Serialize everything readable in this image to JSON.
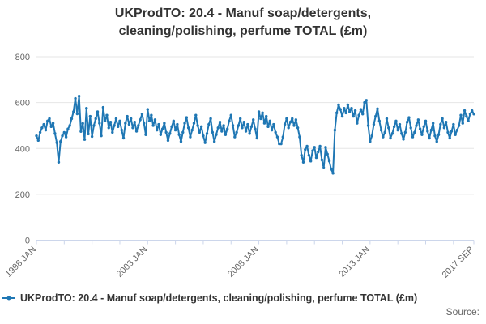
{
  "title": {
    "line1": "UKProdTO: 20.4 - Manuf soap/detergents,",
    "line2": "cleaning/polishing, perfume TOTAL (£m)"
  },
  "legend": {
    "label": "UKProdTO: 20.4 - Manuf soap/detergents, cleaning/polishing, perfume TOTAL (£m)"
  },
  "source_label": "Source:",
  "colors": {
    "series": "#1f77b4",
    "grid": "#e6e6e6",
    "axis_line": "#ccd6eb",
    "title_text": "#333333",
    "axis_text": "#666666",
    "source_text": "#666666",
    "background": "#ffffff"
  },
  "chart_data": {
    "type": "line",
    "title": "UKProdTO: 20.4 - Manuf soap/detergents, cleaning/polishing, perfume TOTAL (£m)",
    "xlabel": "",
    "ylabel": "",
    "ylim": [
      0,
      800
    ],
    "y_ticks": [
      0,
      200,
      400,
      600,
      800
    ],
    "grid": true,
    "legend_position": "bottom-left",
    "x_start": "1998 JAN",
    "x_end": "2017 SEP",
    "frequency": "monthly",
    "n_points": 237,
    "x_tick_labels": [
      {
        "month_index": 0,
        "label": "1998 JAN"
      },
      {
        "month_index": 60,
        "label": "2003 JAN"
      },
      {
        "month_index": 120,
        "label": "2008 JAN"
      },
      {
        "month_index": 180,
        "label": "2013 JAN"
      },
      {
        "month_index": 236,
        "label": "2017 SEP"
      }
    ],
    "minor_tick_interval_months": 15,
    "series": [
      {
        "name": "UKProdTO: 20.4 - Manuf soap/detergents, cleaning/polishing, perfume TOTAL (£m)",
        "color": "#1f77b4",
        "start": "1998 JAN",
        "values": [
          455,
          435,
          470,
          490,
          505,
          480,
          520,
          530,
          495,
          510,
          465,
          425,
          340,
          430,
          455,
          470,
          450,
          485,
          500,
          530,
          560,
          618,
          551,
          628,
          474,
          509,
          439,
          575,
          463,
          540,
          452,
          500,
          530,
          560,
          510,
          455,
          579,
          520,
          545,
          490,
          515,
          470,
          500,
          530,
          495,
          520,
          480,
          445,
          510,
          540,
          505,
          530,
          490,
          515,
          475,
          500,
          525,
          550,
          510,
          460,
          570,
          520,
          545,
          500,
          525,
          480,
          505,
          460,
          485,
          510,
          470,
          435,
          465,
          495,
          520,
          480,
          505,
          460,
          430,
          470,
          510,
          535,
          490,
          450,
          480,
          510,
          545,
          500,
          470,
          495,
          455,
          425,
          465,
          505,
          530,
          470,
          430,
          460,
          490,
          515,
          475,
          500,
          460,
          485,
          520,
          545,
          500,
          450,
          470,
          500,
          530,
          490,
          515,
          475,
          505,
          465,
          495,
          525,
          485,
          445,
          560,
          530,
          555,
          510,
          540,
          495,
          520,
          480,
          505,
          470,
          450,
          420,
          420,
          450,
          505,
          530,
          490,
          515,
          530,
          500,
          525,
          490,
          450,
          370,
          340,
          395,
          410,
          370,
          345,
          390,
          405,
          360,
          385,
          410,
          350,
          315,
          405,
          375,
          345,
          310,
          292,
          480,
          555,
          590,
          570,
          540,
          575,
          555,
          590,
          560,
          575,
          540,
          565,
          510,
          545,
          570,
          550,
          600,
          610,
          500,
          430,
          455,
          505,
          540,
          573,
          520,
          480,
          450,
          470,
          530,
          490,
          445,
          465,
          495,
          520,
          480,
          505,
          465,
          440,
          470,
          515,
          535,
          490,
          450,
          470,
          500,
          525,
          485,
          460,
          495,
          520,
          475,
          445,
          480,
          510,
          455,
          430,
          460,
          505,
          530,
          490,
          515,
          470,
          445,
          475,
          505,
          460,
          480,
          500,
          545,
          510,
          565,
          540,
          520,
          550,
          565,
          550
        ]
      }
    ]
  }
}
